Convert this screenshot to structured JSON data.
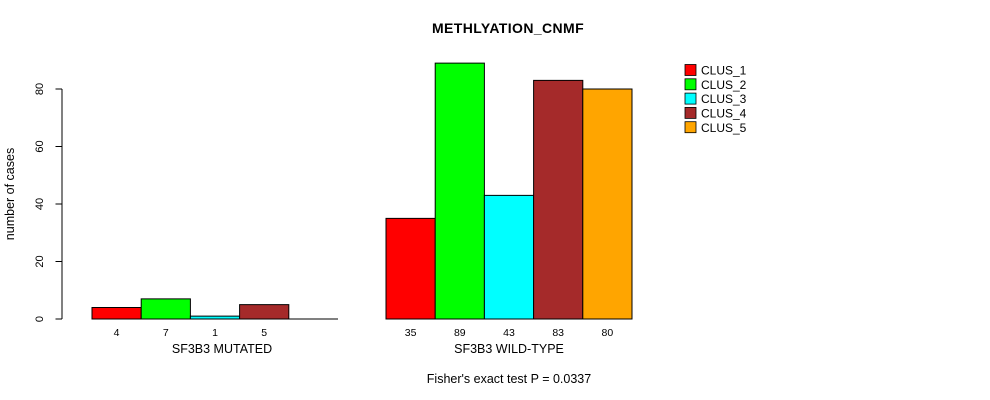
{
  "title": "METHLYATION_CNMF",
  "y_axis": {
    "label": "number of cases",
    "ticks": [
      0,
      20,
      40,
      60,
      80
    ]
  },
  "footnote": "Fisher's exact test P = 0.0337",
  "chart_data": {
    "type": "bar",
    "title": "METHLYATION_CNMF",
    "xlabel": "",
    "ylabel": "number of cases",
    "ylim": [
      0,
      89
    ],
    "yticks": [
      0,
      20,
      40,
      60,
      80
    ],
    "grid": false,
    "legend_position": "right",
    "categories": [
      "SF3B3 MUTATED",
      "SF3B3 WILD-TYPE"
    ],
    "series": [
      {
        "name": "CLUS_1",
        "color": "#ff0000",
        "values": [
          4,
          35
        ]
      },
      {
        "name": "CLUS_2",
        "color": "#00ff00",
        "values": [
          7,
          89
        ]
      },
      {
        "name": "CLUS_3",
        "color": "#00ffff",
        "values": [
          1,
          43
        ]
      },
      {
        "name": "CLUS_4",
        "color": "#a52a2a",
        "values": [
          5,
          83
        ]
      },
      {
        "name": "CLUS_5",
        "color": "#ffa500",
        "values": [
          0,
          80
        ]
      }
    ],
    "bar_value_labels": [
      [
        "4",
        "7",
        "1",
        "5",
        ""
      ],
      [
        "35",
        "89",
        "43",
        "83",
        "80"
      ]
    ],
    "annotation": "Fisher's exact test P = 0.0337"
  }
}
